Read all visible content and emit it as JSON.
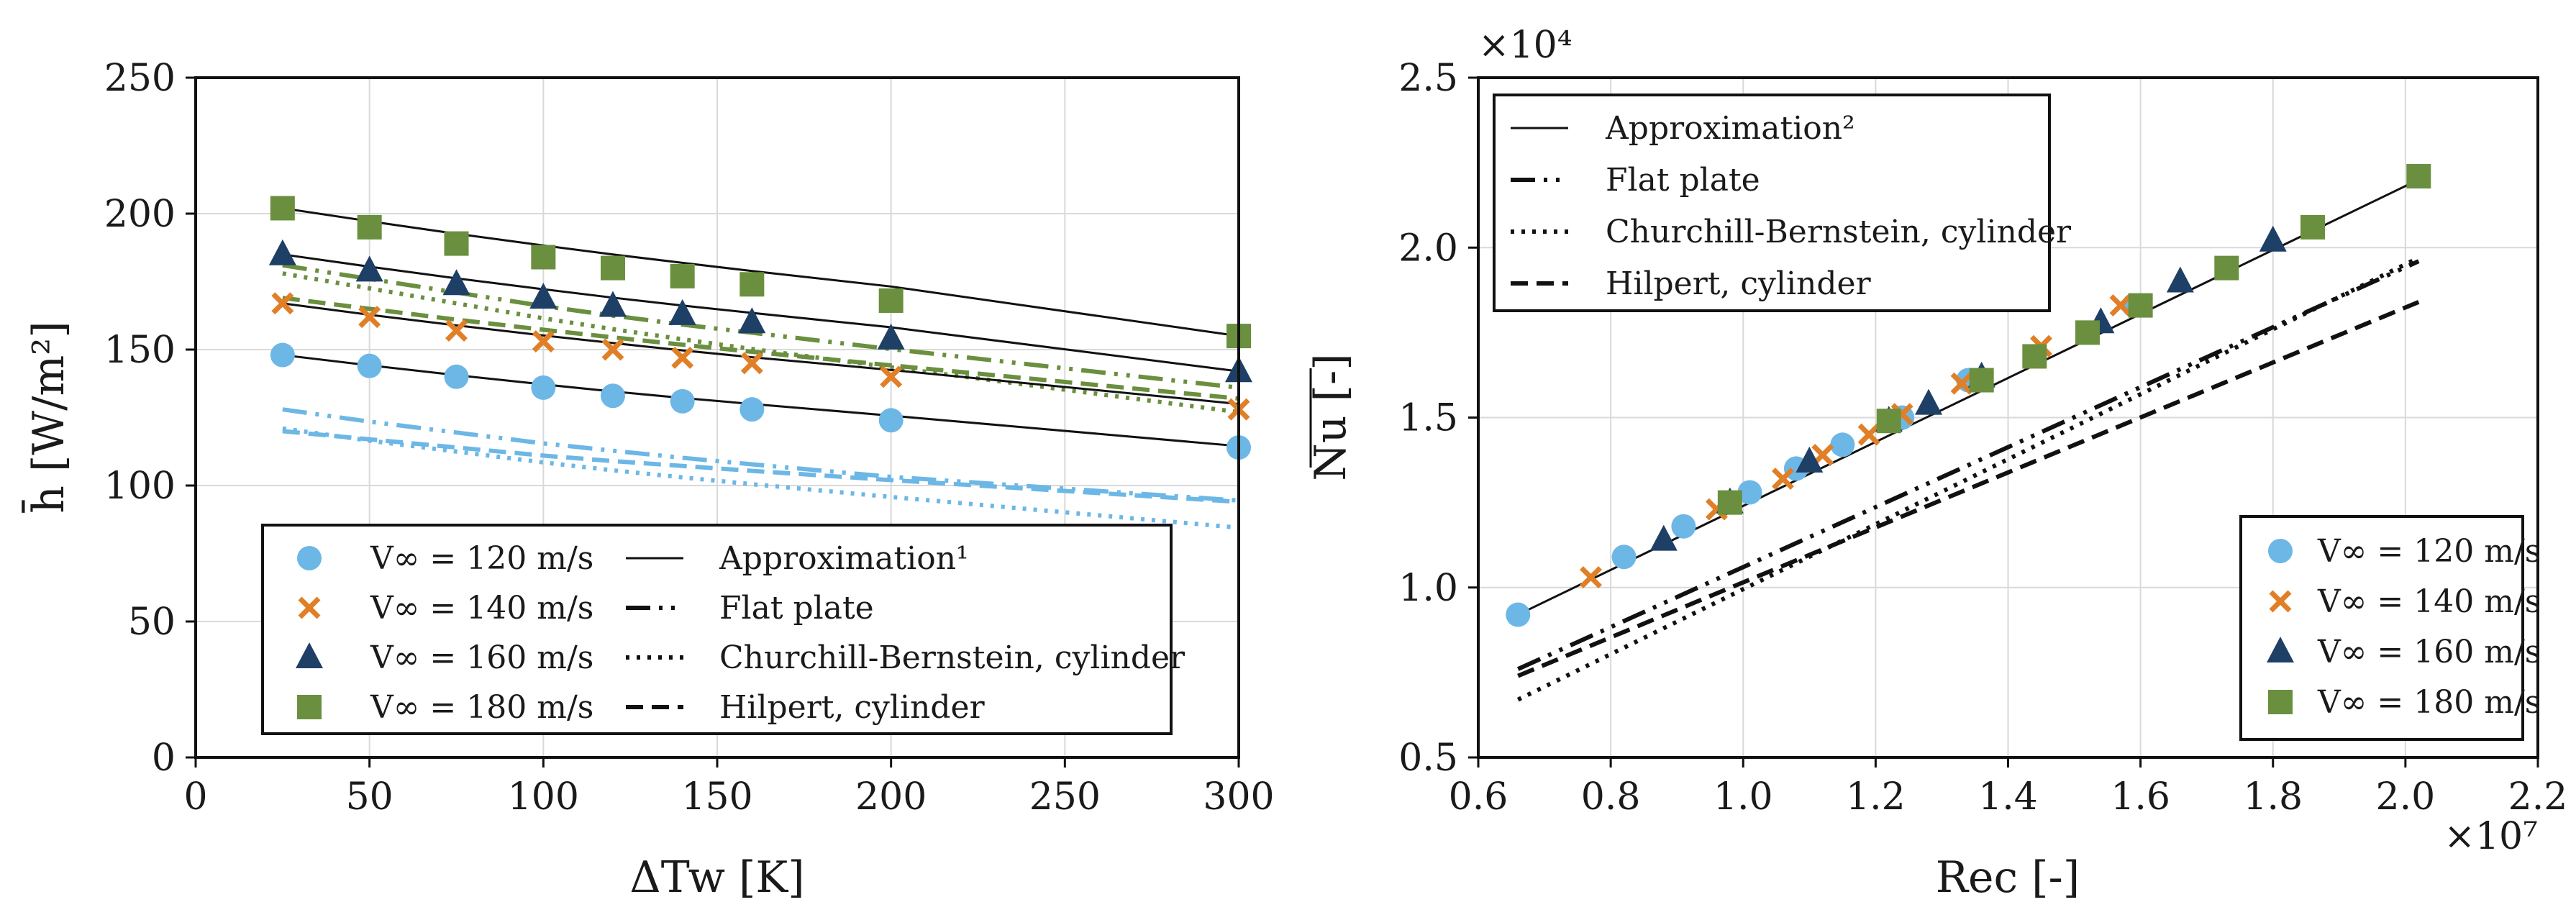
{
  "chart_data": [
    {
      "type": "scatter",
      "xlabel": "ΔTw [K]",
      "ylabel": "h̄ [W/m²]",
      "xlim": [
        0,
        300
      ],
      "ylim": [
        0,
        250
      ],
      "xticks": [
        "0",
        "50",
        "100",
        "150",
        "200",
        "250",
        "300"
      ],
      "yticks": [
        "0",
        "50",
        "100",
        "150",
        "200",
        "250"
      ],
      "grid": true,
      "legend_position": "bottom-center",
      "legend_columns": [
        [
          "V∞ = 120 m/s",
          "V∞ = 140 m/s",
          "V∞ = 160 m/s",
          "V∞ = 180 m/s"
        ],
        [
          "Approximation¹",
          "Flat plate",
          "Churchill-Bernstein, cylinder",
          "Hilpert, cylinder"
        ]
      ],
      "series": [
        {
          "name": "V∞ = 120 m/s",
          "marker": "circle",
          "color": "#6cb7e6",
          "x": [
            25,
            50,
            75,
            100,
            120,
            140,
            160,
            200,
            300
          ],
          "y": [
            148,
            144,
            140,
            136,
            133,
            131,
            128,
            124,
            114
          ],
          "approximation": [
            148,
            144.2,
            140.6,
            137.2,
            134.6,
            132.2,
            130,
            125.7,
            114.5
          ],
          "flat_plate": [
            128,
            123.5,
            119.5,
            115.5,
            112.8,
            110.2,
            107.8,
            103.2,
            94.5
          ],
          "churchill_bernstein": [
            121,
            116.5,
            112.5,
            108.5,
            105.6,
            103,
            100.5,
            95.8,
            84.5
          ],
          "hilpert": [
            120,
            117,
            114,
            111,
            109,
            107.2,
            105.4,
            102,
            94
          ]
        },
        {
          "name": "V∞ = 140 m/s",
          "marker": "x",
          "color": "#e07f26",
          "x": [
            25,
            50,
            75,
            100,
            120,
            140,
            160,
            200,
            300
          ],
          "y": [
            167,
            162,
            157,
            153,
            150,
            147,
            145,
            140,
            128
          ],
          "approximation": [
            167,
            162.8,
            158.9,
            155.2,
            152.4,
            149.7,
            147.2,
            142.5,
            130
          ]
        },
        {
          "name": "V∞ = 160 m/s",
          "marker": "triangle",
          "color": "#1e3f66",
          "x": [
            25,
            50,
            75,
            100,
            120,
            140,
            160,
            200,
            300
          ],
          "y": [
            185,
            179,
            174,
            169,
            166,
            163,
            160,
            154,
            142
          ],
          "approximation": [
            185,
            180.5,
            176.2,
            172.2,
            169.1,
            166.2,
            163.5,
            158.2,
            142
          ]
        },
        {
          "name": "V∞ = 180 m/s",
          "marker": "square",
          "color": "#6a8f3e",
          "x": [
            25,
            50,
            75,
            100,
            120,
            140,
            160,
            200,
            300
          ],
          "y": [
            202,
            195,
            189,
            184,
            180,
            177,
            174,
            168,
            155
          ],
          "approximation": [
            202,
            197.2,
            192.6,
            188.3,
            185,
            181.9,
            178.9,
            173.2,
            155
          ],
          "flat_plate": [
            181,
            176,
            171,
            166,
            162.5,
            159.2,
            156.2,
            150.2,
            136
          ],
          "churchill_bernstein": [
            178,
            172.5,
            167,
            161.5,
            157.5,
            153.8,
            150.2,
            143.5,
            127
          ],
          "hilpert": [
            169,
            165,
            161,
            157.3,
            154.5,
            151.8,
            149.2,
            144.2,
            132
          ]
        }
      ]
    },
    {
      "type": "scatter",
      "xlabel": "Rec [-]",
      "ylabel": "Nu [-]",
      "x_scale_label": "×10⁷",
      "y_scale_label": "×10⁴",
      "xlim": [
        0.6,
        2.2
      ],
      "ylim": [
        0.5,
        2.5
      ],
      "xticks": [
        "0.6",
        "0.8",
        "1.0",
        "1.2",
        "1.4",
        "1.6",
        "1.8",
        "2.0",
        "2.2"
      ],
      "yticks": [
        "0.5",
        "1.0",
        "1.5",
        "2.0",
        "2.5"
      ],
      "grid": true,
      "legend_lines_position": "top-left",
      "legend_markers_position": "bottom-right",
      "legend_lines": [
        "Approximation²",
        "Flat plate",
        "Churchill-Bernstein, cylinder",
        "Hilpert, cylinder"
      ],
      "legend_markers": [
        "V∞ = 120 m/s",
        "V∞ = 140 m/s",
        "V∞ = 160 m/s",
        "V∞ = 180 m/s"
      ],
      "approximation": {
        "x": [
          0.66,
          2.02
        ],
        "y": [
          0.92,
          2.2
        ]
      },
      "flat_plate": {
        "x": [
          0.66,
          2.02
        ],
        "y": [
          0.76,
          1.96
        ]
      },
      "churchill_bernstein": {
        "x": [
          0.66,
          2.02
        ],
        "y": [
          0.67,
          1.97
        ]
      },
      "hilpert": {
        "x": [
          0.66,
          2.02
        ],
        "y": [
          0.74,
          1.84
        ]
      },
      "series": [
        {
          "name": "V∞ = 120 m/s",
          "marker": "circle",
          "color": "#6cb7e6",
          "x": [
            0.66,
            0.82,
            0.91,
            1.01,
            1.08,
            1.15,
            1.24,
            1.34,
            1.59
          ],
          "y": [
            0.92,
            1.09,
            1.18,
            1.28,
            1.35,
            1.42,
            1.5,
            1.61,
            1.83
          ]
        },
        {
          "name": "V∞ = 140 m/s",
          "marker": "x",
          "color": "#e07f26",
          "x": [
            0.77,
            0.96,
            1.06,
            1.12,
            1.19,
            1.24,
            1.33,
            1.45,
            1.57
          ],
          "y": [
            1.03,
            1.23,
            1.32,
            1.39,
            1.45,
            1.51,
            1.6,
            1.71,
            1.83
          ]
        },
        {
          "name": "V∞ = 160 m/s",
          "marker": "triangle",
          "color": "#1e3f66",
          "x": [
            0.88,
            0.98,
            1.1,
            1.22,
            1.28,
            1.36,
            1.54,
            1.66,
            1.8
          ],
          "y": [
            1.14,
            1.25,
            1.37,
            1.49,
            1.54,
            1.62,
            1.78,
            1.9,
            2.02
          ]
        },
        {
          "name": "V∞ = 180 m/s",
          "marker": "square",
          "color": "#6a8f3e",
          "x": [
            0.98,
            1.22,
            1.36,
            1.44,
            1.52,
            1.6,
            1.73,
            1.86,
            2.02
          ],
          "y": [
            1.25,
            1.49,
            1.61,
            1.68,
            1.75,
            1.83,
            1.94,
            2.06,
            2.21
          ]
        }
      ]
    }
  ]
}
